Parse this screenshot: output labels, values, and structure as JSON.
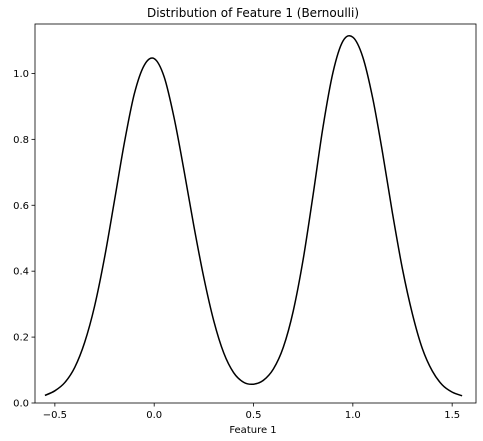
{
  "chart_data": {
    "type": "line",
    "title": "Distribution of Feature 1 (Bernoulli)",
    "xlabel": "Feature 1",
    "ylabel": "",
    "xlim": [
      -0.6,
      1.62
    ],
    "ylim": [
      0.0,
      1.15
    ],
    "xticks": [
      -0.5,
      0.0,
      0.5,
      1.0,
      1.5
    ],
    "xtick_labels": [
      "−0.5",
      "0.0",
      "0.5",
      "1.0",
      "1.5"
    ],
    "yticks": [
      0.0,
      0.2,
      0.4,
      0.6,
      0.8,
      1.0
    ],
    "ytick_labels": [
      "0.0",
      "0.2",
      "0.4",
      "0.6",
      "0.8",
      "1.0"
    ],
    "grid": false,
    "series": [
      {
        "color": "#000000",
        "x": [
          -0.55,
          -0.5,
          -0.45,
          -0.4,
          -0.35,
          -0.3,
          -0.25,
          -0.2,
          -0.15,
          -0.1,
          -0.05,
          0.0,
          0.05,
          0.1,
          0.15,
          0.2,
          0.25,
          0.3,
          0.35,
          0.4,
          0.45,
          0.5,
          0.55,
          0.6,
          0.65,
          0.7,
          0.75,
          0.8,
          0.85,
          0.9,
          0.95,
          1.0,
          1.05,
          1.1,
          1.15,
          1.2,
          1.25,
          1.3,
          1.35,
          1.4,
          1.45,
          1.5,
          1.55
        ],
        "y": [
          0.023,
          0.037,
          0.062,
          0.108,
          0.184,
          0.294,
          0.441,
          0.614,
          0.79,
          0.938,
          1.025,
          1.045,
          0.99,
          0.866,
          0.706,
          0.536,
          0.38,
          0.249,
          0.152,
          0.092,
          0.063,
          0.057,
          0.069,
          0.103,
          0.169,
          0.279,
          0.436,
          0.632,
          0.838,
          1.003,
          1.098,
          1.11,
          1.05,
          0.925,
          0.758,
          0.574,
          0.406,
          0.27,
          0.165,
          0.097,
          0.055,
          0.033,
          0.022
        ]
      }
    ]
  }
}
